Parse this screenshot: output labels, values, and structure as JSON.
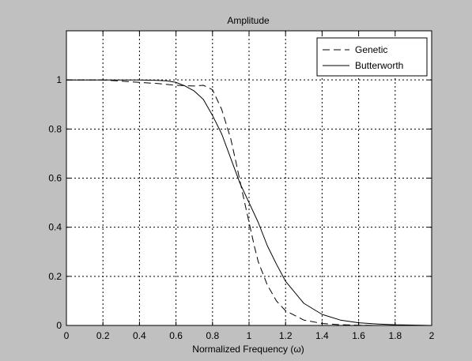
{
  "chart_data": {
    "type": "line",
    "title": "Amplitude",
    "xlabel": "Normalized Frequency (ω)",
    "ylabel": "",
    "xlim": [
      0,
      2
    ],
    "ylim": [
      0,
      1.2
    ],
    "x_ticks": [
      0,
      0.2,
      0.4,
      0.6,
      0.8,
      1,
      1.2,
      1.4,
      1.6,
      1.8,
      2
    ],
    "x_tick_labels": [
      "0",
      "0.2",
      "0.4",
      "0.6",
      "0.8",
      "1",
      "1.2",
      "1.4",
      "1.6",
      "1.8",
      "2"
    ],
    "y_ticks": [
      0,
      0.2,
      0.4,
      0.6,
      0.8,
      1
    ],
    "y_tick_labels": [
      "0",
      "0.2",
      "0.4",
      "0.6",
      "0.8",
      "1"
    ],
    "grid": true,
    "legend_position": "top-right",
    "colors": {
      "figure_bg": "#c0c0c0",
      "axes_bg": "#ffffff",
      "line": "#000000"
    },
    "series": [
      {
        "name": "Genetic",
        "line_style": "dashed",
        "x": [
          0,
          0.1,
          0.2,
          0.3,
          0.4,
          0.5,
          0.6,
          0.7,
          0.75,
          0.8,
          0.85,
          0.9,
          0.93,
          0.95,
          0.97,
          1.0,
          1.03,
          1.05,
          1.1,
          1.15,
          1.2,
          1.3,
          1.4,
          1.5,
          1.6,
          1.7,
          1.8,
          2.0
        ],
        "values": [
          1.0,
          1.0,
          1.0,
          0.995,
          0.99,
          0.985,
          0.978,
          0.975,
          0.978,
          0.96,
          0.88,
          0.76,
          0.66,
          0.59,
          0.52,
          0.42,
          0.32,
          0.26,
          0.165,
          0.1,
          0.06,
          0.022,
          0.008,
          0.003,
          0.001,
          0.0,
          0.0,
          0.0
        ]
      },
      {
        "name": "Butterworth",
        "line_style": "solid",
        "x": [
          0,
          0.1,
          0.2,
          0.3,
          0.4,
          0.5,
          0.55,
          0.6,
          0.65,
          0.7,
          0.75,
          0.8,
          0.85,
          0.9,
          0.95,
          1.0,
          1.05,
          1.1,
          1.15,
          1.2,
          1.3,
          1.4,
          1.5,
          1.6,
          1.7,
          1.8,
          2.0
        ],
        "values": [
          1.0,
          1.0,
          1.0,
          1.0,
          1.0,
          0.998,
          0.996,
          0.99,
          0.975,
          0.955,
          0.92,
          0.855,
          0.78,
          0.68,
          0.58,
          0.5,
          0.42,
          0.325,
          0.25,
          0.18,
          0.09,
          0.045,
          0.022,
          0.011,
          0.006,
          0.003,
          0.0
        ]
      }
    ]
  }
}
